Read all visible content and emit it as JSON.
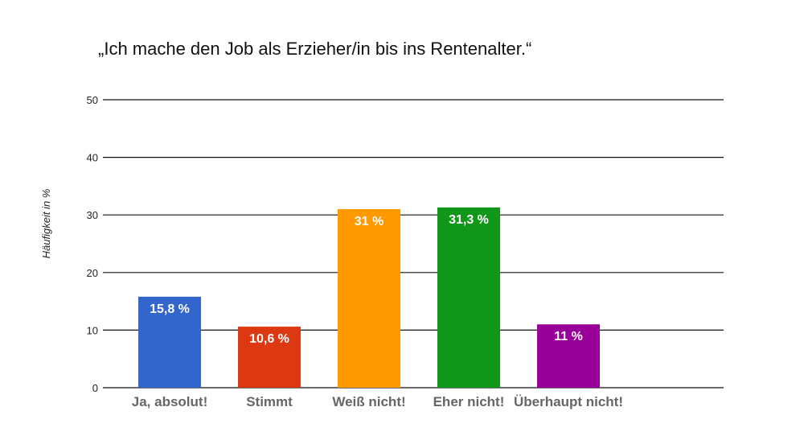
{
  "chart_data": {
    "type": "bar",
    "title": "„Ich mache den Job als Erzieher/in bis ins Rentenalter.“",
    "ylabel": "Häufigkeit in %",
    "xlabel": "",
    "ylim": [
      0,
      50
    ],
    "yticks": [
      0,
      10,
      20,
      30,
      40,
      50
    ],
    "grid": true,
    "categories": [
      "Ja, absolut!",
      "Stimmt",
      "Weiß nicht!",
      "Eher nicht!",
      "Überhaupt nicht!"
    ],
    "values": [
      15.8,
      10.6,
      31,
      31.3,
      11
    ],
    "data_labels": [
      "15,8 %",
      "10,6 %",
      "31 %",
      "31,3 %",
      "11 %"
    ],
    "colors": [
      "#3366cc",
      "#dc3912",
      "#ff9900",
      "#109618",
      "#990099"
    ]
  }
}
